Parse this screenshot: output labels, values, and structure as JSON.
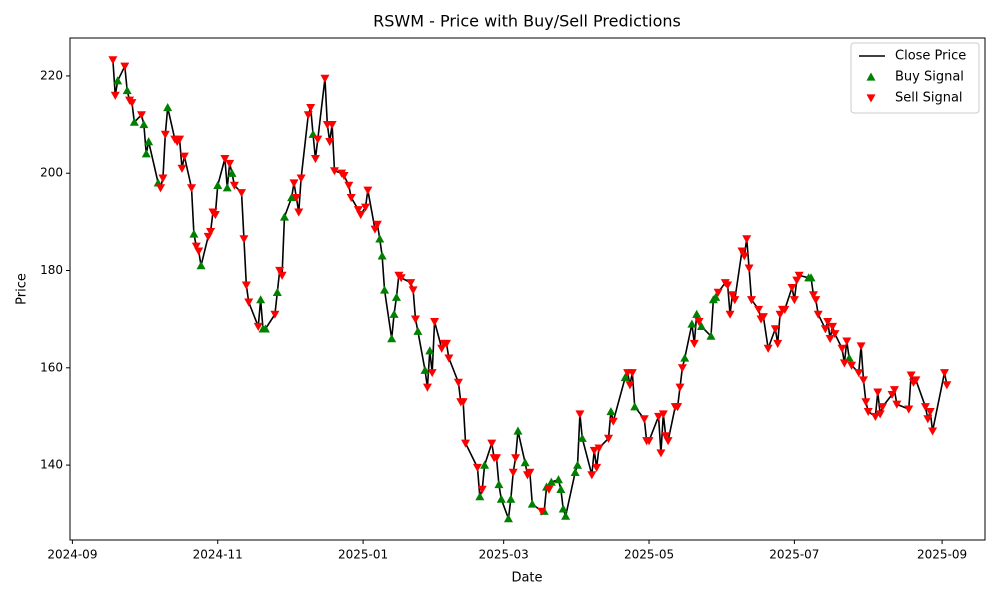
{
  "chart_data": {
    "type": "line",
    "title": "RSWM - Price with Buy/Sell Predictions",
    "xlabel": "Date",
    "ylabel": "Price",
    "xlim": [
      "2024-08-31",
      "2025-09-19"
    ],
    "xticks": [
      {
        "value": "2024-09-01",
        "label": "2024-09"
      },
      {
        "value": "2024-11-01",
        "label": "2024-11"
      },
      {
        "value": "2025-01-01",
        "label": "2025-01"
      },
      {
        "value": "2025-03-01",
        "label": "2025-03"
      },
      {
        "value": "2025-05-01",
        "label": "2025-05"
      },
      {
        "value": "2025-07-01",
        "label": "2025-07"
      },
      {
        "value": "2025-09-01",
        "label": "2025-09"
      }
    ],
    "ylim": [
      124.6,
      227.8
    ],
    "yticks": [
      140,
      160,
      180,
      200,
      220
    ],
    "legend": "upper right",
    "series": [
      {
        "name": "Close Price",
        "color": "#000000",
        "marker": "line",
        "x": [
          "2024-09-18",
          "2024-09-19",
          "2024-09-20",
          "2024-09-23",
          "2024-09-24",
          "2024-09-25",
          "2024-09-26",
          "2024-09-27",
          "2024-09-30",
          "2024-10-01",
          "2024-10-02",
          "2024-10-03",
          "2024-10-07",
          "2024-10-08",
          "2024-10-09",
          "2024-10-10",
          "2024-10-11",
          "2024-10-14",
          "2024-10-15",
          "2024-10-16",
          "2024-10-17",
          "2024-10-18",
          "2024-10-21",
          "2024-10-22",
          "2024-10-23",
          "2024-10-24",
          "2024-10-25",
          "2024-10-28",
          "2024-10-29",
          "2024-10-30",
          "2024-10-31",
          "2024-11-01",
          "2024-11-04",
          "2024-11-05",
          "2024-11-06",
          "2024-11-07",
          "2024-11-08",
          "2024-11-11",
          "2024-11-12",
          "2024-11-13",
          "2024-11-14",
          "2024-11-18",
          "2024-11-19",
          "2024-11-20",
          "2024-11-21",
          "2024-11-25",
          "2024-11-26",
          "2024-11-27",
          "2024-11-28",
          "2024-11-29",
          "2024-12-02",
          "2024-12-03",
          "2024-12-04",
          "2024-12-05",
          "2024-12-06",
          "2024-12-09",
          "2024-12-10",
          "2024-12-11",
          "2024-12-12",
          "2024-12-13",
          "2024-12-16",
          "2024-12-17",
          "2024-12-18",
          "2024-12-19",
          "2024-12-20",
          "2024-12-23",
          "2024-12-24",
          "2024-12-26",
          "2024-12-27",
          "2024-12-30",
          "2024-12-31",
          "2025-01-02",
          "2025-01-03",
          "2025-01-06",
          "2025-01-07",
          "2025-01-08",
          "2025-01-09",
          "2025-01-10",
          "2025-01-13",
          "2025-01-14",
          "2025-01-15",
          "2025-01-16",
          "2025-01-17",
          "2025-01-21",
          "2025-01-22",
          "2025-01-23",
          "2025-01-24",
          "2025-01-27",
          "2025-01-28",
          "2025-01-29",
          "2025-01-30",
          "2025-01-31",
          "2025-02-03",
          "2025-02-04",
          "2025-02-05",
          "2025-02-06",
          "2025-02-10",
          "2025-02-11",
          "2025-02-12",
          "2025-02-13",
          "2025-02-18",
          "2025-02-19",
          "2025-02-20",
          "2025-02-21",
          "2025-02-24",
          "2025-02-25",
          "2025-02-26",
          "2025-02-27",
          "2025-02-28",
          "2025-03-03",
          "2025-03-04",
          "2025-03-05",
          "2025-03-06",
          "2025-03-07",
          "2025-03-10",
          "2025-03-11",
          "2025-03-12",
          "2025-03-13",
          "2025-03-17",
          "2025-03-18",
          "2025-03-19",
          "2025-03-20",
          "2025-03-21",
          "2025-03-24",
          "2025-03-25",
          "2025-03-26",
          "2025-03-27",
          "2025-03-31",
          "2025-04-01",
          "2025-04-02",
          "2025-04-03",
          "2025-04-07",
          "2025-04-08",
          "2025-04-09",
          "2025-04-10",
          "2025-04-14",
          "2025-04-15",
          "2025-04-16",
          "2025-04-21",
          "2025-04-22",
          "2025-04-23",
          "2025-04-24",
          "2025-04-25",
          "2025-04-29",
          "2025-04-30",
          "2025-05-01",
          "2025-05-05",
          "2025-05-06",
          "2025-05-07",
          "2025-05-08",
          "2025-05-09",
          "2025-05-12",
          "2025-05-13",
          "2025-05-14",
          "2025-05-15",
          "2025-05-16",
          "2025-05-19",
          "2025-05-20",
          "2025-05-21",
          "2025-05-22",
          "2025-05-23",
          "2025-05-27",
          "2025-05-28",
          "2025-05-29",
          "2025-05-30",
          "2025-06-02",
          "2025-06-03",
          "2025-06-04",
          "2025-06-05",
          "2025-06-06",
          "2025-06-09",
          "2025-06-10",
          "2025-06-11",
          "2025-06-12",
          "2025-06-13",
          "2025-06-16",
          "2025-06-17",
          "2025-06-18",
          "2025-06-20",
          "2025-06-23",
          "2025-06-24",
          "2025-06-25",
          "2025-06-26",
          "2025-06-27",
          "2025-06-30",
          "2025-07-01",
          "2025-07-02",
          "2025-07-03",
          "2025-07-07",
          "2025-07-08",
          "2025-07-09",
          "2025-07-10",
          "2025-07-11",
          "2025-07-14",
          "2025-07-15",
          "2025-07-16",
          "2025-07-17",
          "2025-07-18",
          "2025-07-21",
          "2025-07-22",
          "2025-07-23",
          "2025-07-24",
          "2025-07-25",
          "2025-07-28",
          "2025-07-29",
          "2025-07-30",
          "2025-07-31",
          "2025-08-01",
          "2025-08-04",
          "2025-08-05",
          "2025-08-06",
          "2025-08-07",
          "2025-08-11",
          "2025-08-12",
          "2025-08-13",
          "2025-08-18",
          "2025-08-19",
          "2025-08-20",
          "2025-08-21",
          "2025-08-25",
          "2025-08-26",
          "2025-08-27",
          "2025-08-28",
          "2025-09-02",
          "2025-09-03"
        ],
        "values": [
          223.3,
          216,
          219,
          222,
          217,
          215,
          214.5,
          210.5,
          212,
          210,
          204,
          206.5,
          198,
          197,
          199,
          208,
          213.5,
          207,
          206.5,
          207,
          201,
          203.5,
          197,
          187.5,
          185,
          184,
          181,
          187,
          188,
          192,
          191.5,
          197.5,
          203,
          197,
          202,
          200,
          197.5,
          196,
          186.5,
          177,
          173.5,
          168.5,
          174,
          168,
          168,
          171,
          175.5,
          180,
          179,
          191,
          195,
          198,
          195,
          192,
          199,
          212,
          213.5,
          208,
          203,
          207,
          219.5,
          210,
          206.5,
          210,
          200.5,
          200,
          199.5,
          197.5,
          195,
          192.5,
          191.5,
          193,
          196.5,
          188.5,
          189.5,
          186.5,
          183,
          176,
          166,
          171,
          174.5,
          179,
          178.5,
          177.5,
          176,
          170,
          167.5,
          159.5,
          156,
          163.5,
          159,
          169.5,
          164,
          165,
          165,
          162,
          157,
          153,
          153,
          144.5,
          139.5,
          133.5,
          135,
          140,
          144.5,
          141.5,
          141.5,
          136,
          133,
          129,
          133,
          138.5,
          141.5,
          147,
          140.5,
          138,
          138.5,
          132,
          130.5,
          130.5,
          135.5,
          135,
          136.5,
          137,
          135,
          131,
          129.5,
          138.5,
          140,
          150.5,
          145.5,
          138,
          143,
          139.5,
          143.5,
          145.5,
          151,
          149,
          158,
          159,
          156.5,
          159,
          152,
          149.5,
          145,
          145,
          150,
          142.5,
          150.5,
          146,
          145,
          152,
          152,
          156,
          160,
          162,
          169,
          165,
          171,
          169.5,
          168.5,
          166.5,
          174,
          174.5,
          175.5,
          177.5,
          177,
          171,
          175,
          174,
          184,
          183,
          186.5,
          180.5,
          174,
          172,
          170,
          170.5,
          164,
          168,
          165,
          171,
          172,
          172,
          176.5,
          174,
          178,
          179,
          178.5,
          178.5,
          175,
          174,
          171,
          168,
          169.5,
          166,
          168.5,
          167,
          164,
          161,
          165.5,
          162,
          160.5,
          159,
          164.5,
          157.5,
          153,
          151,
          150,
          155,
          150.5,
          152,
          154.5,
          155.5,
          152.5,
          151.5,
          158.5,
          157,
          157.5,
          152,
          149.5,
          151,
          147,
          159,
          156.5
        ]
      },
      {
        "name": "Buy Signal",
        "color": "#008000",
        "marker": "triangle-up",
        "x": [
          "2024-09-20",
          "2024-09-24",
          "2024-09-27",
          "2024-10-01",
          "2024-10-02",
          "2024-10-03",
          "2024-10-07",
          "2024-10-11",
          "2024-10-22",
          "2024-10-25",
          "2024-11-01",
          "2024-11-05",
          "2024-11-07",
          "2024-11-19",
          "2024-11-20",
          "2024-11-21",
          "2024-11-26",
          "2024-11-29",
          "2024-12-02",
          "2024-12-11",
          "2025-01-08",
          "2025-01-09",
          "2025-01-10",
          "2025-01-13",
          "2025-01-14",
          "2025-01-15",
          "2025-01-24",
          "2025-01-27",
          "2025-01-29",
          "2025-02-19",
          "2025-02-21",
          "2025-02-27",
          "2025-02-28",
          "2025-03-03",
          "2025-03-04",
          "2025-03-07",
          "2025-03-10",
          "2025-03-13",
          "2025-03-18",
          "2025-03-19",
          "2025-03-21",
          "2025-03-24",
          "2025-03-25",
          "2025-03-26",
          "2025-03-27",
          "2025-03-31",
          "2025-04-01",
          "2025-04-03",
          "2025-04-15",
          "2025-04-21",
          "2025-04-25",
          "2025-05-16",
          "2025-05-19",
          "2025-05-21",
          "2025-05-23",
          "2025-05-27",
          "2025-05-28",
          "2025-05-29",
          "2025-07-07",
          "2025-07-08",
          "2025-07-24"
        ],
        "values": [
          219,
          217,
          210.5,
          210,
          204,
          206.5,
          198,
          213.5,
          187.5,
          181,
          197.5,
          197,
          200,
          174,
          168,
          168,
          175.5,
          191,
          195,
          208,
          186.5,
          183,
          176,
          166,
          171,
          174.5,
          167.5,
          159.5,
          163.5,
          133.5,
          140,
          136,
          133,
          129,
          133,
          147,
          140.5,
          132,
          130.5,
          135.5,
          136.5,
          137,
          135,
          131,
          129.5,
          138.5,
          140,
          145.5,
          151,
          158,
          152,
          162,
          169,
          171,
          168.5,
          166.5,
          174,
          174.5,
          178.5,
          178.5,
          162
        ]
      },
      {
        "name": "Sell Signal",
        "color": "#ff0000",
        "marker": "triangle-down",
        "x": [
          "2024-09-18",
          "2024-09-19",
          "2024-09-23",
          "2024-09-25",
          "2024-09-26",
          "2024-09-30",
          "2024-10-08",
          "2024-10-09",
          "2024-10-10",
          "2024-10-14",
          "2024-10-15",
          "2024-10-16",
          "2024-10-17",
          "2024-10-18",
          "2024-10-21",
          "2024-10-23",
          "2024-10-24",
          "2024-10-28",
          "2024-10-29",
          "2024-10-30",
          "2024-10-31",
          "2024-11-04",
          "2024-11-06",
          "2024-11-08",
          "2024-11-11",
          "2024-11-12",
          "2024-11-13",
          "2024-11-14",
          "2024-11-18",
          "2024-11-25",
          "2024-11-27",
          "2024-11-28",
          "2024-12-03",
          "2024-12-04",
          "2024-12-05",
          "2024-12-06",
          "2024-12-09",
          "2024-12-10",
          "2024-12-12",
          "2024-12-13",
          "2024-12-16",
          "2024-12-17",
          "2024-12-18",
          "2024-12-19",
          "2024-12-20",
          "2024-12-23",
          "2024-12-24",
          "2024-12-26",
          "2024-12-27",
          "2024-12-30",
          "2024-12-31",
          "2025-01-02",
          "2025-01-03",
          "2025-01-06",
          "2025-01-07",
          "2025-01-16",
          "2025-01-17",
          "2025-01-21",
          "2025-01-22",
          "2025-01-23",
          "2025-01-28",
          "2025-01-30",
          "2025-01-31",
          "2025-02-03",
          "2025-02-04",
          "2025-02-05",
          "2025-02-06",
          "2025-02-10",
          "2025-02-11",
          "2025-02-12",
          "2025-02-13",
          "2025-02-18",
          "2025-02-20",
          "2025-02-24",
          "2025-02-25",
          "2025-02-26",
          "2025-03-05",
          "2025-03-06",
          "2025-03-11",
          "2025-03-12",
          "2025-03-17",
          "2025-03-20",
          "2025-04-02",
          "2025-04-07",
          "2025-04-08",
          "2025-04-09",
          "2025-04-10",
          "2025-04-14",
          "2025-04-16",
          "2025-04-22",
          "2025-04-23",
          "2025-04-24",
          "2025-04-29",
          "2025-04-30",
          "2025-05-01",
          "2025-05-05",
          "2025-05-06",
          "2025-05-07",
          "2025-05-08",
          "2025-05-09",
          "2025-05-12",
          "2025-05-13",
          "2025-05-14",
          "2025-05-15",
          "2025-05-20",
          "2025-05-22",
          "2025-05-30",
          "2025-06-02",
          "2025-06-03",
          "2025-06-04",
          "2025-06-05",
          "2025-06-06",
          "2025-06-09",
          "2025-06-10",
          "2025-06-11",
          "2025-06-12",
          "2025-06-13",
          "2025-06-16",
          "2025-06-17",
          "2025-06-18",
          "2025-06-20",
          "2025-06-23",
          "2025-06-24",
          "2025-06-25",
          "2025-06-26",
          "2025-06-27",
          "2025-06-30",
          "2025-07-01",
          "2025-07-02",
          "2025-07-03",
          "2025-07-09",
          "2025-07-10",
          "2025-07-11",
          "2025-07-14",
          "2025-07-15",
          "2025-07-16",
          "2025-07-17",
          "2025-07-18",
          "2025-07-21",
          "2025-07-22",
          "2025-07-23",
          "2025-07-25",
          "2025-07-28",
          "2025-07-29",
          "2025-07-30",
          "2025-07-31",
          "2025-08-01",
          "2025-08-04",
          "2025-08-05",
          "2025-08-06",
          "2025-08-07",
          "2025-08-11",
          "2025-08-12",
          "2025-08-13",
          "2025-08-18",
          "2025-08-19",
          "2025-08-20",
          "2025-08-21",
          "2025-08-25",
          "2025-08-26",
          "2025-08-27",
          "2025-08-28",
          "2025-09-02",
          "2025-09-03"
        ],
        "values": [
          223.3,
          216,
          222,
          215,
          214.5,
          212,
          197,
          199,
          208,
          207,
          206.5,
          207,
          201,
          203.5,
          197,
          185,
          184,
          187,
          188,
          192,
          191.5,
          203,
          202,
          197.5,
          196,
          186.5,
          177,
          173.5,
          168.5,
          171,
          180,
          179,
          198,
          195,
          192,
          199,
          212,
          213.5,
          203,
          207,
          219.5,
          210,
          206.5,
          210,
          200.5,
          200,
          199.5,
          197.5,
          195,
          192.5,
          191.5,
          193,
          196.5,
          188.5,
          189.5,
          179,
          178.5,
          177.5,
          176,
          170,
          156,
          159,
          169.5,
          164,
          165,
          165,
          162,
          157,
          153,
          153,
          144.5,
          139.5,
          135,
          144.5,
          141.5,
          141.5,
          138.5,
          141.5,
          138,
          138.5,
          130.5,
          135,
          150.5,
          138,
          143,
          139.5,
          143.5,
          145.5,
          149,
          159,
          156.5,
          159,
          149.5,
          145,
          145,
          150,
          142.5,
          150.5,
          146,
          145,
          152,
          152,
          156,
          160,
          165,
          169.5,
          175.5,
          177.5,
          177,
          171,
          175,
          174,
          184,
          183,
          186.5,
          180.5,
          174,
          172,
          170,
          170.5,
          164,
          168,
          165,
          171,
          172,
          172,
          176.5,
          174,
          178,
          179,
          175,
          174,
          171,
          168,
          169.5,
          166,
          168.5,
          167,
          164,
          161,
          165.5,
          160.5,
          159,
          164.5,
          157.5,
          153,
          151,
          150,
          155,
          150.5,
          152,
          154.5,
          155.5,
          152.5,
          151.5,
          158.5,
          157,
          157.5,
          152,
          149.5,
          151,
          147,
          159,
          156.5
        ]
      }
    ]
  }
}
